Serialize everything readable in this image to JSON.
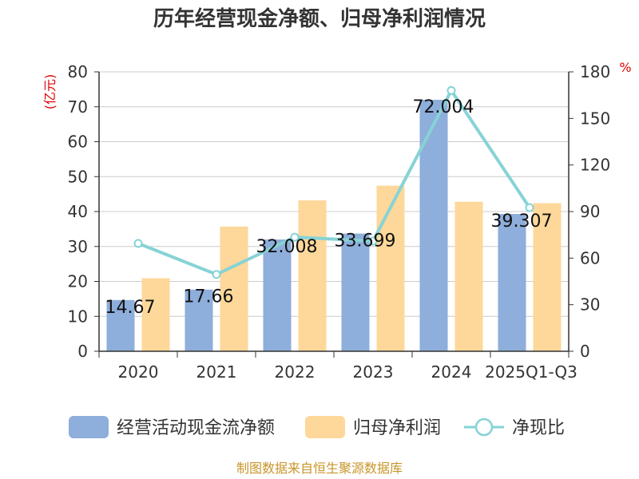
{
  "title": "历年经营现金净额、归母净利润情况",
  "source": "制图数据来自恒生聚源数据库",
  "colors": {
    "cashflow": "#8eaedb",
    "profit": "#fdd89a",
    "ratio": "#86d3d6",
    "axis": "#333333",
    "grid": "#cccccc",
    "unit": "#e00000",
    "source": "#c8962a"
  },
  "chart_data": {
    "type": "bar",
    "title": "历年经营现金净额、归母净利润情况",
    "categories": [
      "2020",
      "2021",
      "2022",
      "2023",
      "2024",
      "2025Q1-Q3"
    ],
    "y_left": {
      "label": "(亿元)",
      "ticks": [
        "0",
        "10",
        "20",
        "30",
        "40",
        "50",
        "60",
        "70",
        "80"
      ],
      "ylim": [
        0,
        80
      ]
    },
    "y_right": {
      "label": "%",
      "ticks": [
        "0",
        "30",
        "60",
        "90",
        "120",
        "150",
        "180"
      ],
      "ylim": [
        0,
        180
      ]
    },
    "series": [
      {
        "name": "经营活动现金流净额",
        "type": "bar",
        "axis": "left",
        "values": [
          14.67,
          17.66,
          32.008,
          33.699,
          72.004,
          39.307
        ],
        "labels": [
          "14.67",
          "17.66",
          "32.008",
          "33.699",
          "72.004",
          "39.307"
        ]
      },
      {
        "name": "归母净利润",
        "type": "bar",
        "axis": "left",
        "values": [
          20.9,
          35.7,
          43.2,
          47.4,
          42.8,
          42.4
        ]
      },
      {
        "name": "净现比",
        "type": "line",
        "axis": "right",
        "values": [
          69.5,
          49.5,
          73.5,
          71,
          168,
          92.5
        ]
      }
    ],
    "legend": [
      "经营活动现金流净额",
      "归母净利润",
      "净现比"
    ]
  }
}
